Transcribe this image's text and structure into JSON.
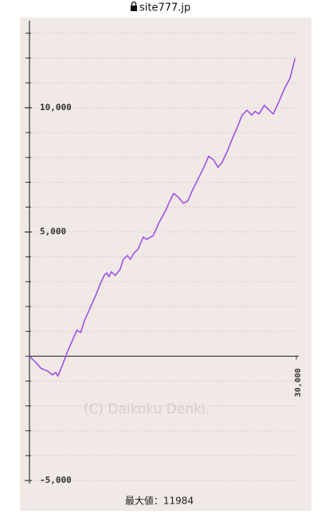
{
  "browser": {
    "url": "site777.jp"
  },
  "chart_data": {
    "type": "line",
    "color": "#a050e8",
    "x": [
      0,
      700,
      1350,
      2050,
      2600,
      2950,
      3200,
      3650,
      4300,
      4900,
      5350,
      5750,
      6200,
      6900,
      7450,
      7950,
      8400,
      8700,
      8950,
      9200,
      9650,
      10200,
      10550,
      11000,
      11350,
      11750,
      12200,
      12800,
      13150,
      13900,
      14600,
      15300,
      15650,
      16200,
      16750,
      17300,
      17800,
      18350,
      18900,
      19600,
      20150,
      20700,
      21200,
      21650,
      22300,
      22850,
      23350,
      23900,
      24450,
      25000,
      25350,
      25800,
      26400,
      26950,
      27400,
      28050,
      28650,
      29300,
      29850
    ],
    "values": [
      0,
      -250,
      -500,
      -600,
      -750,
      -650,
      -800,
      -400,
      200,
      700,
      1050,
      950,
      1450,
      2000,
      2450,
      2900,
      3250,
      3350,
      3200,
      3400,
      3250,
      3500,
      3900,
      4050,
      3900,
      4150,
      4300,
      4800,
      4700,
      4850,
      5400,
      5850,
      6150,
      6550,
      6400,
      6150,
      6250,
      6700,
      7100,
      7600,
      8050,
      7900,
      7600,
      7800,
      8300,
      8800,
      9200,
      9700,
      9900,
      9700,
      9850,
      9750,
      10100,
      9900,
      9750,
      10250,
      10750,
      11200,
      11984
    ],
    "xlim": [
      0,
      30000
    ],
    "xticks": [
      {
        "value": 30000,
        "label": "30,000"
      }
    ],
    "ylim": [
      -5000,
      13500
    ],
    "yticks": [
      {
        "value": -5000,
        "label": "-5,000"
      },
      {
        "value": 5000,
        "label": "5,000"
      },
      {
        "value": 10000,
        "label": "10,000"
      }
    ],
    "minor_yticks": [
      -5000,
      -4000,
      -3000,
      -2000,
      -1000,
      0,
      1000,
      2000,
      3000,
      4000,
      5000,
      6000,
      7000,
      8000,
      9000,
      10000,
      11000,
      12000,
      13000
    ],
    "grid": true,
    "watermark": "(C) Daikoku Denki.",
    "footer": "最大値：11984"
  }
}
